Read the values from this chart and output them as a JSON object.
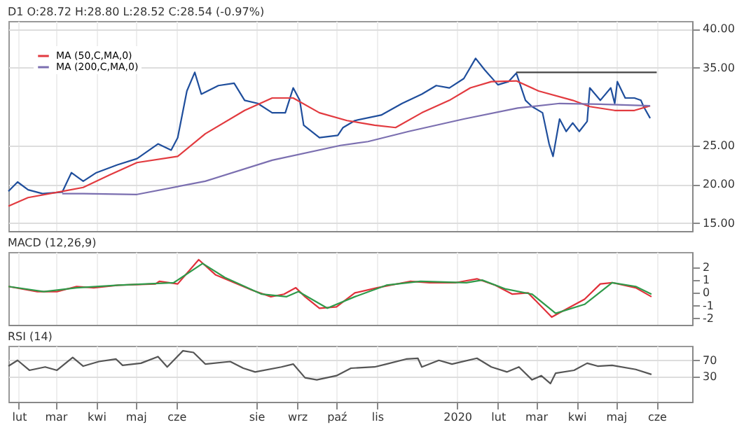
{
  "chart_data": [
    {
      "type": "line",
      "title": "D1 O:28.72 H:28.80 L:28.52 C:28.54 (-0.97%)",
      "xlim": [
        "2019-01-24",
        "2020-06-28"
      ],
      "xticks": [
        "2019-02-01",
        "2019-03-01",
        "2019-04-01",
        "2019-05-01",
        "2019-06-01",
        "2019-08-01",
        "2019-09-01",
        "2019-10-01",
        "2019-11-01",
        "2020-01-01",
        "2020-02-01",
        "2020-03-01",
        "2020-04-01",
        "2020-05-01",
        "2020-06-01"
      ],
      "ylim": [
        14,
        41
      ],
      "yticks": [
        {
          "value": 15,
          "label": "15.00"
        },
        {
          "value": 20,
          "label": "20.00"
        },
        {
          "value": 25,
          "label": "25.00"
        },
        {
          "value": 35,
          "label": "35.00"
        },
        {
          "value": 40,
          "label": "40.00"
        }
      ],
      "grid": true,
      "legend": "top left",
      "tick_labels": "y",
      "series": [
        {
          "color": "#1f4e9c",
          "x": [
            "2019-01-24",
            "2019-01-31",
            "2019-02-08",
            "2019-02-19",
            "2019-03-06",
            "2019-03-13",
            "2019-03-22",
            "2019-04-01",
            "2019-04-17",
            "2019-05-02",
            "2019-05-18",
            "2019-05-28",
            "2019-06-02",
            "2019-06-09",
            "2019-06-15",
            "2019-06-20",
            "2019-07-03",
            "2019-07-15",
            "2019-07-23",
            "2019-08-02",
            "2019-08-13",
            "2019-08-23",
            "2019-08-29",
            "2019-09-03",
            "2019-09-06",
            "2019-09-18",
            "2019-10-02",
            "2019-10-06",
            "2019-10-15",
            "2019-11-04",
            "2019-11-20",
            "2019-12-05",
            "2019-12-16",
            "2019-12-26",
            "2020-01-06",
            "2020-01-15",
            "2020-01-22",
            "2020-02-01",
            "2020-02-09",
            "2020-02-15",
            "2020-02-22",
            "2020-02-27",
            "2020-03-06",
            "2020-03-11",
            "2020-03-14",
            "2020-03-19",
            "2020-03-24",
            "2020-03-29",
            "2020-04-03",
            "2020-04-09",
            "2020-04-11",
            "2020-04-19",
            "2020-04-27",
            "2020-04-30",
            "2020-05-02",
            "2020-05-08",
            "2020-05-15",
            "2020-05-20",
            "2020-05-22",
            "2020-05-27"
          ],
          "values": [
            19.1,
            20.3,
            19.3,
            18.8,
            19.0,
            21.5,
            20.4,
            21.5,
            22.5,
            23.3,
            25.2,
            24.4,
            26.0,
            32.0,
            34.4,
            31.6,
            32.7,
            33.0,
            30.8,
            30.4,
            29.2,
            29.2,
            32.4,
            30.8,
            27.6,
            26.0,
            26.3,
            27.3,
            28.2,
            28.9,
            30.4,
            31.6,
            32.7,
            32.4,
            33.6,
            36.2,
            34.7,
            32.8,
            33.2,
            34.3,
            30.8,
            30.0,
            29.2,
            25.2,
            23.6,
            28.4,
            26.8,
            27.9,
            26.8,
            28.1,
            32.4,
            30.8,
            32.4,
            30.4,
            33.2,
            31.1,
            31.1,
            30.8,
            30.0,
            28.5
          ]
        },
        {
          "name": "MA (50,C,MA,0)",
          "color": "#e23a3f",
          "x": [
            "2019-01-24",
            "2019-02-08",
            "2019-03-06",
            "2019-03-22",
            "2019-04-11",
            "2019-05-02",
            "2019-06-02",
            "2019-06-23",
            "2019-07-23",
            "2019-08-13",
            "2019-08-29",
            "2019-09-18",
            "2019-10-09",
            "2019-10-30",
            "2019-11-15",
            "2019-12-05",
            "2019-12-26",
            "2020-01-11",
            "2020-01-27",
            "2020-02-15",
            "2020-03-03",
            "2020-03-29",
            "2020-04-11",
            "2020-04-30",
            "2020-05-15",
            "2020-05-27"
          ],
          "values": [
            17.2,
            18.3,
            19.1,
            19.6,
            21.2,
            22.8,
            23.6,
            26.5,
            29.5,
            31.1,
            31.1,
            29.2,
            28.2,
            27.6,
            27.3,
            29.2,
            30.8,
            32.4,
            33.2,
            33.3,
            32.0,
            30.8,
            30.0,
            29.5,
            29.5,
            30.1
          ]
        },
        {
          "name": "MA (200,C,MA,0)",
          "color": "#7b6fb0",
          "x": [
            "2019-03-06",
            "2019-03-22",
            "2019-05-02",
            "2019-06-23",
            "2019-08-13",
            "2019-10-04",
            "2019-10-25",
            "2019-11-25",
            "2020-01-06",
            "2020-02-16",
            "2020-03-19",
            "2020-04-19",
            "2020-05-27"
          ],
          "values": [
            18.8,
            18.8,
            18.7,
            20.4,
            23.1,
            25.0,
            25.5,
            26.8,
            28.4,
            29.8,
            30.4,
            30.3,
            30.1
          ]
        },
        {
          "color": "#444444",
          "x": [
            "2020-02-15",
            "2020-06-01"
          ],
          "values": [
            34.4,
            34.4
          ]
        }
      ]
    },
    {
      "type": "line",
      "title": "MACD (12,26,9)",
      "xlim": [
        "2019-01-24",
        "2020-06-28"
      ],
      "xticks": [
        "2019-02-01",
        "2019-03-01",
        "2019-04-01",
        "2019-05-01",
        "2019-06-01",
        "2019-08-01",
        "2019-09-01",
        "2019-10-01",
        "2019-11-01",
        "2020-01-01",
        "2020-02-01",
        "2020-03-01",
        "2020-04-01",
        "2020-05-01",
        "2020-06-01"
      ],
      "ylim": [
        -2.5,
        3.2
      ],
      "yticks": [
        -2,
        -1,
        0,
        1,
        2
      ],
      "grid": "x",
      "tick_labels": "y",
      "series": [
        {
          "color": "#e0303a",
          "x": [
            "2019-01-24",
            "2019-02-15",
            "2019-03-02",
            "2019-03-17",
            "2019-03-30",
            "2019-04-18",
            "2019-05-16",
            "2019-05-19",
            "2019-06-02",
            "2019-06-18",
            "2019-07-01",
            "2019-07-15",
            "2019-07-29",
            "2019-08-12",
            "2019-08-22",
            "2019-08-31",
            "2019-09-07",
            "2019-09-18",
            "2019-10-01",
            "2019-10-15",
            "2019-11-01",
            "2019-11-26",
            "2019-12-11",
            "2019-12-31",
            "2020-01-16",
            "2020-01-30",
            "2020-02-12",
            "2020-02-24",
            "2020-03-13",
            "2020-03-20",
            "2020-04-07",
            "2020-04-19",
            "2020-04-28",
            "2020-05-16",
            "2020-05-28"
          ],
          "values": [
            0.5,
            0.1,
            0.1,
            0.5,
            0.4,
            0.6,
            0.7,
            0.9,
            0.7,
            2.6,
            1.4,
            0.8,
            0.2,
            -0.3,
            -0.1,
            0.4,
            -0.3,
            -1.2,
            -1.1,
            0.0,
            0.4,
            0.9,
            0.8,
            0.8,
            1.1,
            0.6,
            -0.1,
            0.0,
            -1.9,
            -1.5,
            -0.5,
            0.7,
            0.8,
            0.4,
            -0.3
          ]
        },
        {
          "color": "#2f9a4a",
          "x": [
            "2019-01-24",
            "2019-02-20",
            "2019-03-17",
            "2019-04-18",
            "2019-05-30",
            "2019-06-21",
            "2019-07-08",
            "2019-08-05",
            "2019-08-24",
            "2019-09-02",
            "2019-09-24",
            "2019-10-15",
            "2019-11-08",
            "2019-12-04",
            "2020-01-08",
            "2020-01-20",
            "2020-02-07",
            "2020-02-27",
            "2020-03-16",
            "2020-04-07",
            "2020-04-28",
            "2020-05-16",
            "2020-05-28"
          ],
          "values": [
            0.5,
            0.1,
            0.4,
            0.6,
            0.8,
            2.3,
            1.2,
            -0.1,
            -0.3,
            0.1,
            -1.2,
            -0.3,
            0.6,
            0.9,
            0.8,
            1.0,
            0.3,
            -0.1,
            -1.6,
            -0.9,
            0.8,
            0.5,
            -0.1
          ]
        }
      ]
    },
    {
      "type": "line",
      "title": "RSI (14)",
      "xlim": [
        "2019-01-24",
        "2020-06-28"
      ],
      "xticks": [
        {
          "value": "2019-02-01",
          "label": "lut"
        },
        {
          "value": "2019-03-01",
          "label": "mar"
        },
        {
          "value": "2019-04-01",
          "label": "kwi"
        },
        {
          "value": "2019-05-01",
          "label": "maj"
        },
        {
          "value": "2019-06-01",
          "label": "cze"
        },
        {
          "value": "2019-08-01",
          "label": "sie"
        },
        {
          "value": "2019-09-01",
          "label": "wrz"
        },
        {
          "value": "2019-10-01",
          "label": "paź"
        },
        {
          "value": "2019-11-01",
          "label": "lis"
        },
        {
          "value": "2020-01-01",
          "label": "2020"
        },
        {
          "value": "2020-02-01",
          "label": "lut"
        },
        {
          "value": "2020-03-01",
          "label": "mar"
        },
        {
          "value": "2020-04-01",
          "label": "kwi"
        },
        {
          "value": "2020-05-01",
          "label": "maj"
        },
        {
          "value": "2020-06-01",
          "label": "cze"
        }
      ],
      "ylim": [
        -30,
        105
      ],
      "yticks": [
        30,
        70
      ],
      "grid": true,
      "series": [
        {
          "color": "#555555",
          "x": [
            "2019-01-24",
            "2019-01-31",
            "2019-02-09",
            "2019-02-21",
            "2019-03-02",
            "2019-03-14",
            "2019-03-22",
            "2019-04-03",
            "2019-04-16",
            "2019-04-21",
            "2019-05-05",
            "2019-05-18",
            "2019-05-25",
            "2019-06-06",
            "2019-06-14",
            "2019-06-23",
            "2019-07-12",
            "2019-07-22",
            "2019-07-31",
            "2019-08-20",
            "2019-08-29",
            "2019-09-07",
            "2019-09-16",
            "2019-10-01",
            "2019-10-12",
            "2019-10-30",
            "2019-11-08",
            "2019-11-23",
            "2019-12-02",
            "2019-12-05",
            "2019-12-18",
            "2019-12-28",
            "2020-01-16",
            "2020-01-27",
            "2020-02-08",
            "2020-02-17",
            "2020-02-27",
            "2020-03-05",
            "2020-03-12",
            "2020-03-16",
            "2020-03-30",
            "2020-04-09",
            "2020-04-17",
            "2020-04-28",
            "2020-05-16",
            "2020-05-28"
          ],
          "values": [
            56,
            70,
            46,
            54,
            46,
            77,
            56,
            67,
            73,
            58,
            63,
            79,
            54,
            93,
            89,
            61,
            67,
            51,
            42,
            54,
            61,
            28,
            23,
            33,
            51,
            54,
            61,
            73,
            75,
            54,
            70,
            61,
            75,
            54,
            42,
            54,
            23,
            33,
            14,
            39,
            46,
            63,
            56,
            58,
            48,
            36
          ]
        }
      ]
    }
  ]
}
